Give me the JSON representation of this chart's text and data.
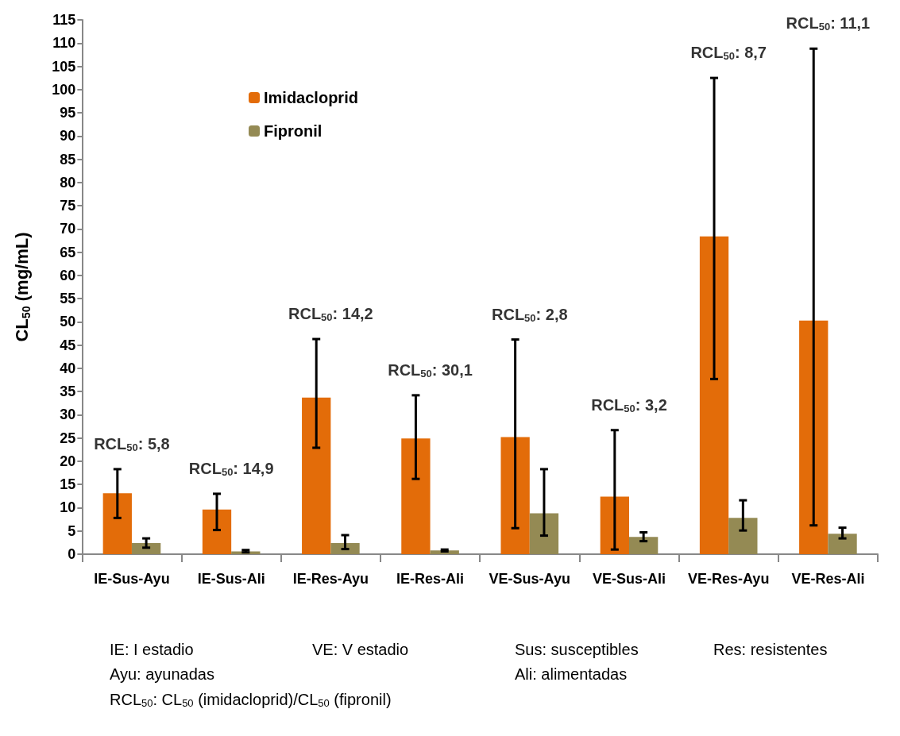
{
  "chart_data": {
    "type": "bar",
    "categories": [
      "IE-Sus-Ayu",
      "IE-Sus-Ali",
      "IE-Res-Ayu",
      "IE-Res-Ali",
      "VE-Sus-Ayu",
      "VE-Sus-Ali",
      "VE-Res-Ayu",
      "VE-Res-Ali"
    ],
    "series": [
      {
        "name": "Imidacloprid",
        "color": "#e36c09",
        "values": [
          13.1,
          9.6,
          33.7,
          24.9,
          25.2,
          12.4,
          68.4,
          50.3
        ],
        "errors": [
          [
            7.8,
            18.3
          ],
          [
            5.2,
            13.0
          ],
          [
            22.9,
            46.3
          ],
          [
            16.2,
            34.2
          ],
          [
            5.6,
            46.2
          ],
          [
            1.0,
            26.7
          ],
          [
            37.7,
            102.5
          ],
          [
            6.2,
            108.8
          ]
        ]
      },
      {
        "name": "Fipronil",
        "color": "#948a54",
        "values": [
          2.4,
          0.6,
          2.4,
          0.8,
          8.8,
          3.7,
          7.8,
          4.4
        ],
        "errors": [
          [
            1.4,
            3.4
          ],
          [
            0.4,
            0.9
          ],
          [
            1.1,
            4.1
          ],
          [
            0.6,
            1.0
          ],
          [
            4.0,
            18.3
          ],
          [
            2.8,
            4.7
          ],
          [
            5.1,
            11.6
          ],
          [
            3.4,
            5.7
          ]
        ]
      }
    ],
    "ylabel": "CL$_{50}$ (mg/mL)",
    "ylim": [
      0,
      115
    ],
    "yticks": [
      0,
      5,
      10,
      15,
      20,
      25,
      30,
      35,
      40,
      45,
      50,
      55,
      60,
      65,
      70,
      75,
      80,
      85,
      90,
      95,
      100,
      105,
      110,
      115
    ],
    "grid": false,
    "legend": "top left",
    "annotations": [
      "RCL$_{50}$: 5,8",
      "RCL$_{50}$: 14,9",
      "RCL$_{50}$: 14,2",
      "RCL$_{50}$: 30,1",
      "RCL$_{50}$: 2,8",
      "RCL$_{50}$: 3,2",
      "RCL$_{50}$: 8,7",
      "RCL$_{50}$: 11,1",
      "IE: I estadio",
      "VE: V estadio",
      "Sus: susceptibles",
      "Res: resistentes",
      "Ayu: ayunadas",
      "Ali: alimentadas",
      "RCL$_{50}$: CL$_{50}$ (imidacloprid)/CL$_{50}$ (fipronil)"
    ]
  }
}
